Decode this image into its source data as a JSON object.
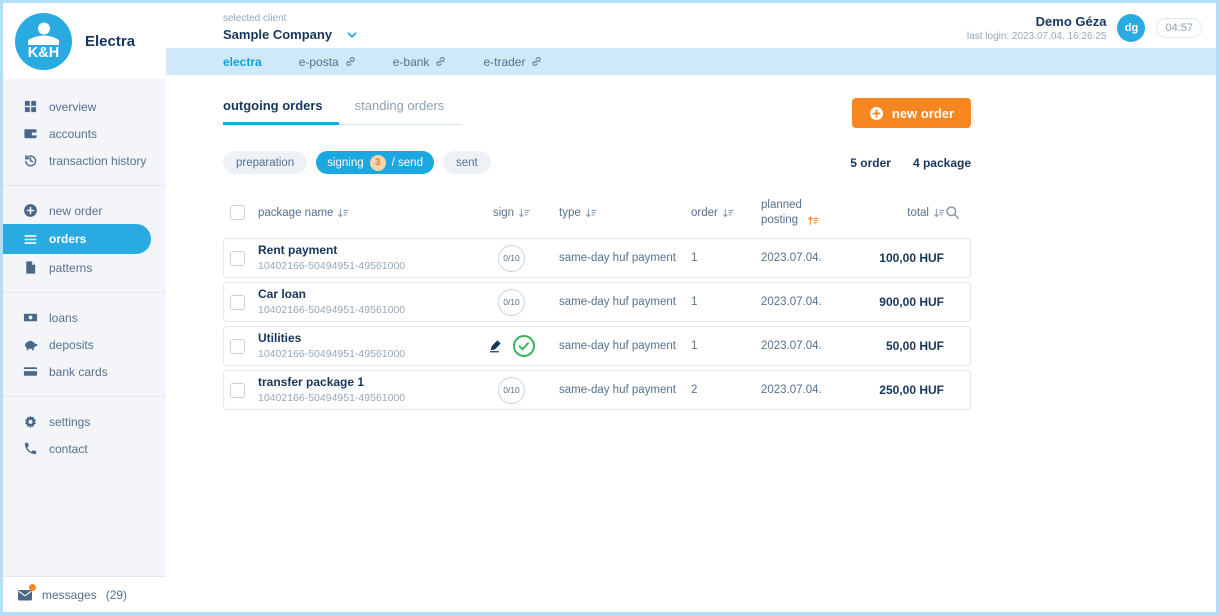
{
  "app": {
    "brand": "K&H",
    "product": "Electra"
  },
  "colors": {
    "brand_blue": "#29abe2",
    "active_blue": "#1ba7e0",
    "orange": "#f6861f",
    "badge_bg": "#fbd4ad",
    "badge_text": "#ef7612",
    "green": "#2fb457",
    "navy": "#17365c",
    "tabbar_bg": "#cfe9f8",
    "sidebar_bg": "#f3f5f9",
    "page_border": "#b3def5"
  },
  "header": {
    "selected_client_label": "selected client",
    "selected_client": "Sample Company",
    "user_name": "Demo Géza",
    "last_login": "last login: 2023.07.04. 16:26:25",
    "avatar_initials": "dg",
    "session_timer": "04:57"
  },
  "app_tabs": [
    {
      "label": "electra",
      "active": true,
      "external": false
    },
    {
      "label": "e-posta",
      "active": false,
      "external": true
    },
    {
      "label": "e-bank",
      "active": false,
      "external": true
    },
    {
      "label": "e-trader",
      "active": false,
      "external": true
    }
  ],
  "sidebar": {
    "groups": [
      [
        {
          "label": "overview",
          "icon": "grid"
        },
        {
          "label": "accounts",
          "icon": "wallet"
        },
        {
          "label": "transaction history",
          "icon": "history"
        }
      ],
      [
        {
          "label": "new order",
          "icon": "plus-circle"
        },
        {
          "label": "orders",
          "icon": "list",
          "active": true
        },
        {
          "label": "patterns",
          "icon": "file"
        }
      ],
      [
        {
          "label": "loans",
          "icon": "banknote"
        },
        {
          "label": "deposits",
          "icon": "piggy"
        },
        {
          "label": "bank cards",
          "icon": "card"
        }
      ],
      [
        {
          "label": "settings",
          "icon": "gear"
        },
        {
          "label": "contact",
          "icon": "phone"
        }
      ]
    ],
    "messages_label": "messages",
    "messages_count": "(29)"
  },
  "content": {
    "tabs": [
      {
        "label": "outgoing orders",
        "active": true
      },
      {
        "label": "standing orders",
        "active": false
      }
    ],
    "new_order_label": "new order",
    "filters": [
      {
        "label": "preparation",
        "active": false
      },
      {
        "active": true,
        "text_before": "signing",
        "badge": "3",
        "text_after": "/ send"
      },
      {
        "label": "sent",
        "active": false
      }
    ],
    "summary": {
      "orders": "5 order",
      "packages": "4 package"
    },
    "table": {
      "columns": [
        {
          "label": "package name",
          "sort": true,
          "active": false
        },
        {
          "label": "sign",
          "sort": true,
          "active": false
        },
        {
          "label": "type",
          "sort": true,
          "active": false
        },
        {
          "label": "order",
          "sort": true,
          "active": false
        },
        {
          "label": "planned posting",
          "sort": true,
          "active": true
        },
        {
          "label": "total",
          "sort": true,
          "active": false
        }
      ],
      "rows": [
        {
          "name": "Rent payment",
          "account": "10402166-50494951-49561000",
          "sign": {
            "badge": "0/10"
          },
          "type": "same-day huf payment",
          "order": "1",
          "posting": "2023.07.04.",
          "total": "100,00 HUF"
        },
        {
          "name": "Car loan",
          "account": "10402166-50494951-49561000",
          "sign": {
            "badge": "0/10"
          },
          "type": "same-day huf payment",
          "order": "1",
          "posting": "2023.07.04.",
          "total": "900,00 HUF"
        },
        {
          "name": "Utilities",
          "account": "10402166-50494951-49561000",
          "sign": {
            "signed": true
          },
          "type": "same-day huf payment",
          "order": "1",
          "posting": "2023.07.04.",
          "total": "50,00 HUF"
        },
        {
          "name": "transfer package 1",
          "account": "10402166-50494951-49561000",
          "sign": {
            "badge": "0/10"
          },
          "type": "same-day huf payment",
          "order": "2",
          "posting": "2023.07.04.",
          "total": "250,00 HUF"
        }
      ]
    }
  }
}
